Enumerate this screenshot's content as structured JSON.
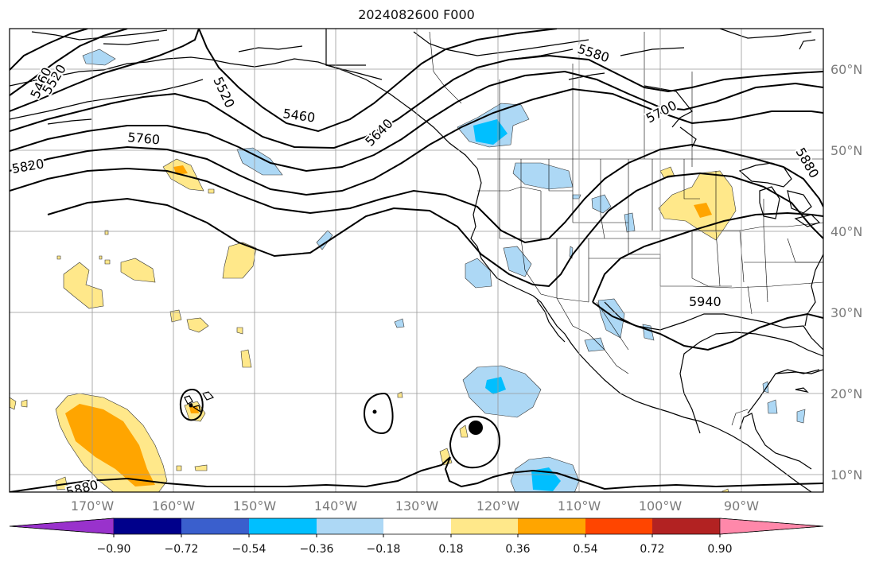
{
  "title": "2024082600 F000",
  "lat_labels": [
    "60°N",
    "50°N",
    "40°N",
    "30°N",
    "20°N",
    "10°N"
  ],
  "lon_labels": [
    "170°W",
    "160°W",
    "150°W",
    "140°W",
    "130°W",
    "120°W",
    "110°W",
    "100°W",
    "90°W"
  ],
  "contour_labels": [
    "5460",
    "5520",
    "5520",
    "5460",
    "5640",
    "5580",
    "5700",
    "5760",
    "5820",
    "5880",
    "5940",
    "5880"
  ],
  "colorbar": {
    "tick_labels": [
      "−0.90",
      "−0.72",
      "−0.54",
      "−0.36",
      "−0.18",
      "0.18",
      "0.36",
      "0.54",
      "0.72",
      "0.90"
    ],
    "colors": [
      "#9932cc",
      "#00008b",
      "#3a5fcd",
      "#00bfff",
      "#add8f5",
      "#ffffff",
      "#ffe88a",
      "#ffa500",
      "#ff4500",
      "#b22222",
      "#ff88aa"
    ]
  }
}
